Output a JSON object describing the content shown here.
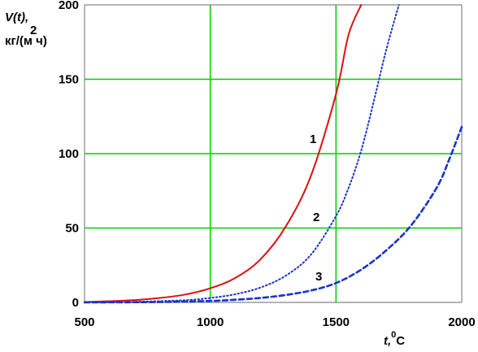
{
  "chart_data": {
    "type": "line",
    "x_range": [
      500,
      2000
    ],
    "ylim": [
      0,
      200
    ],
    "x_ticks": [
      500,
      1000,
      1500,
      2000
    ],
    "y_ticks": [
      0,
      50,
      100,
      150,
      200
    ],
    "grid": true,
    "ylabel_parts": {
      "line1": "V(t),",
      "line2": "кг/(м ч)",
      "sup": "2"
    },
    "xlabel_parts": {
      "base": "t,",
      "sup": "0",
      "unit": "C"
    },
    "colors": {
      "grid": "#00cc00",
      "series1": "#dd1111",
      "series2": "#1a33cc",
      "series3": "#1a33cc"
    },
    "series": [
      {
        "name": "1",
        "style": "solid",
        "x": [
          500,
          600,
          700,
          800,
          900,
          1000,
          1100,
          1200,
          1300,
          1400,
          1500,
          1550,
          1600
        ],
        "values": [
          0.3,
          0.8,
          1.6,
          3.0,
          5.3,
          9.5,
          16.5,
          29.0,
          51.0,
          85.0,
          140.0,
          180.0,
          200.0
        ]
      },
      {
        "name": "2",
        "style": "dotted",
        "x": [
          500,
          700,
          900,
          1000,
          1100,
          1200,
          1300,
          1400,
          1500,
          1550,
          1600,
          1650,
          1700,
          1750
        ],
        "values": [
          0.1,
          0.4,
          1.5,
          3.0,
          5.5,
          10.0,
          18.0,
          32.0,
          58.0,
          77.0,
          102.0,
          135.0,
          170.0,
          200.0
        ]
      },
      {
        "name": "3",
        "style": "dashed",
        "x": [
          500,
          800,
          1000,
          1100,
          1200,
          1300,
          1400,
          1500,
          1600,
          1700,
          1800,
          1900,
          1950,
          2000
        ],
        "values": [
          0.0,
          0.3,
          1.0,
          1.8,
          3.0,
          5.0,
          8.0,
          13.0,
          22.0,
          35.0,
          52.0,
          77.0,
          96.0,
          118.0
        ]
      }
    ]
  }
}
